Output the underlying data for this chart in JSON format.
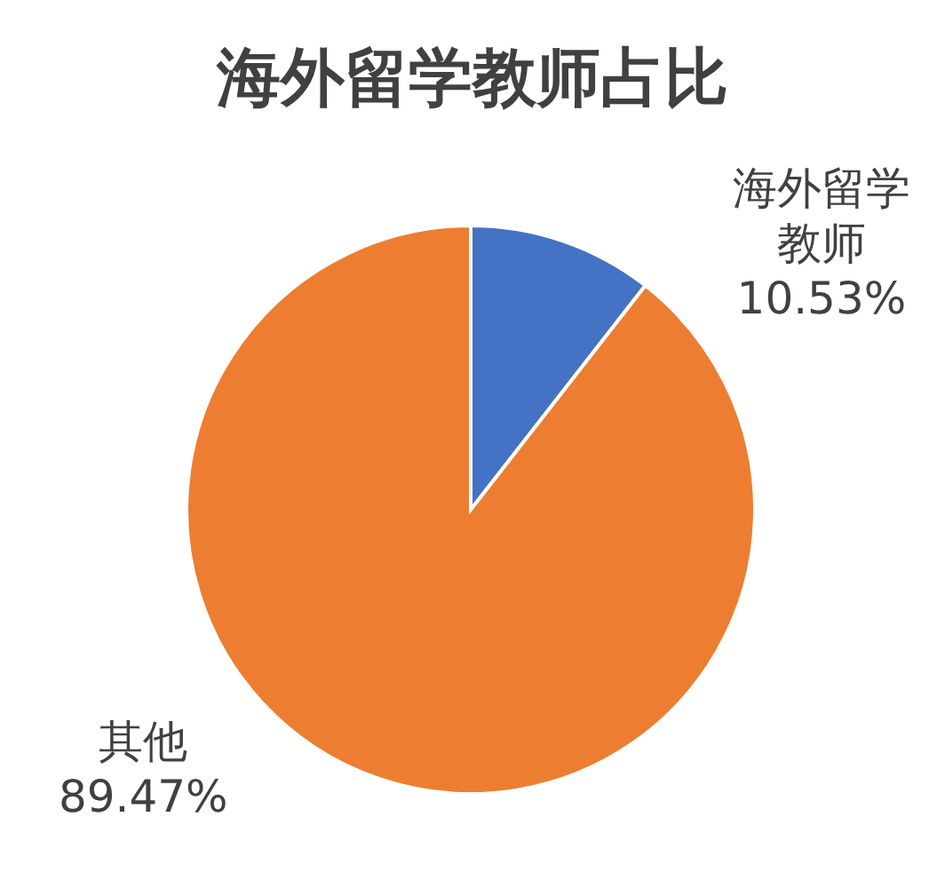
{
  "chart_data": {
    "type": "pie",
    "title": "海外留学教师占比",
    "categories": [
      "海外留学教师",
      "其他"
    ],
    "values": [
      10.53,
      89.47
    ],
    "value_labels": [
      "10.53%",
      "89.47%"
    ],
    "colors": [
      "#4472c4",
      "#ed7d31"
    ],
    "legend": false
  }
}
